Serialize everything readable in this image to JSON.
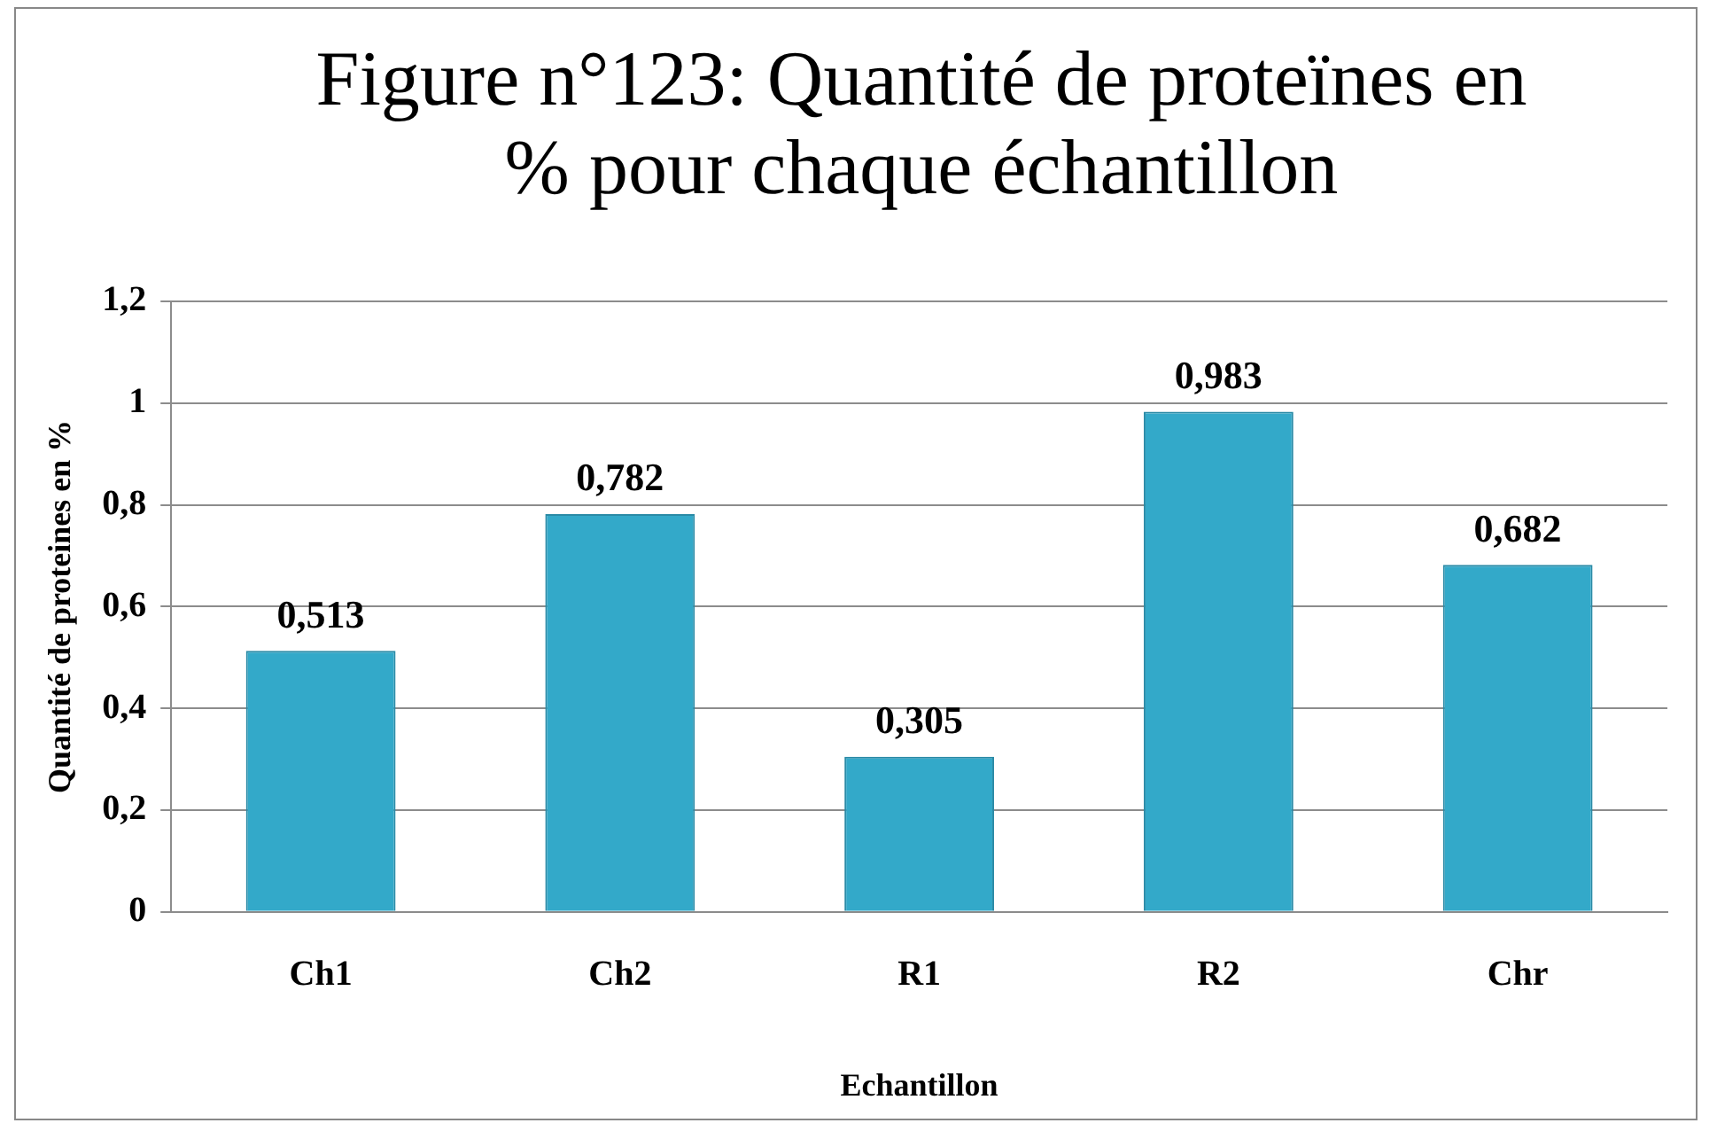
{
  "chart_data": {
    "type": "bar",
    "title": "Figure n°123: Quantité de proteïnes en % pour chaque échantillon",
    "xlabel": "Echantillon",
    "ylabel": "Quantité de proteines en %",
    "categories": [
      "Ch1",
      "Ch2",
      "R1",
      "R2",
      "Chr"
    ],
    "values": [
      0.513,
      0.782,
      0.305,
      0.983,
      0.682
    ],
    "value_labels": [
      "0,513",
      "0,782",
      "0,305",
      "0,983",
      "0,682"
    ],
    "color": "#33a9c9",
    "ylim": [
      0,
      1.2
    ],
    "yticks": [
      {
        "value": 0,
        "label": "0"
      },
      {
        "value": 0.2,
        "label": "0,2"
      },
      {
        "value": 0.4,
        "label": "0,4"
      },
      {
        "value": 0.6,
        "label": "0,6"
      },
      {
        "value": 0.8,
        "label": "0,8"
      },
      {
        "value": 1,
        "label": "1"
      },
      {
        "value": 1.2,
        "label": "1,2"
      }
    ],
    "grid": "y"
  }
}
